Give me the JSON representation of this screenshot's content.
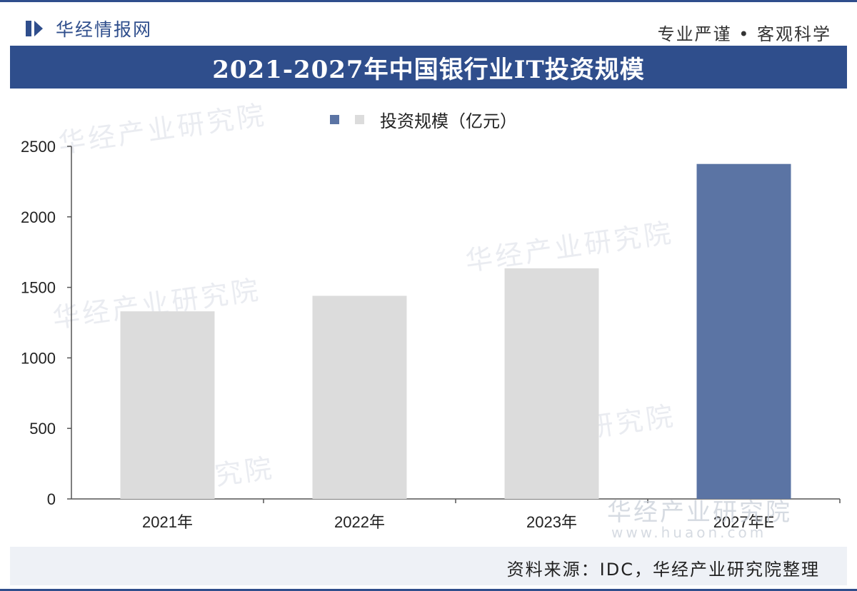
{
  "header": {
    "brand": "华经情报网",
    "slogan": "专业严谨 • 客观科学"
  },
  "colors": {
    "primary": "#2f4e8c",
    "bar_gray": "#dcdcdc",
    "bar_blue": "#5b74a4"
  },
  "chart_data": {
    "type": "bar",
    "title": "2021-2027年中国银行业IT投资规模",
    "categories": [
      "2021年",
      "2022年",
      "2023年",
      "2027年E"
    ],
    "series": [
      {
        "name": "投资规模（亿元）",
        "values": [
          1330,
          1440,
          1635,
          2375
        ]
      }
    ],
    "highlight_index": 3,
    "ylim": [
      0,
      2500
    ],
    "yticks": [
      0,
      500,
      1000,
      1500,
      2000,
      2500
    ],
    "xlabel": "",
    "ylabel": "",
    "grid": false,
    "legend": "top-center"
  },
  "watermarks": [
    "华经产业研究院",
    "华经产业研究院",
    "华经产业研究院",
    "研究院",
    "究院"
  ],
  "watermark_site": "www.huaon.com",
  "footer": {
    "source": "资料来源：IDC，华经产业研究院整理"
  }
}
